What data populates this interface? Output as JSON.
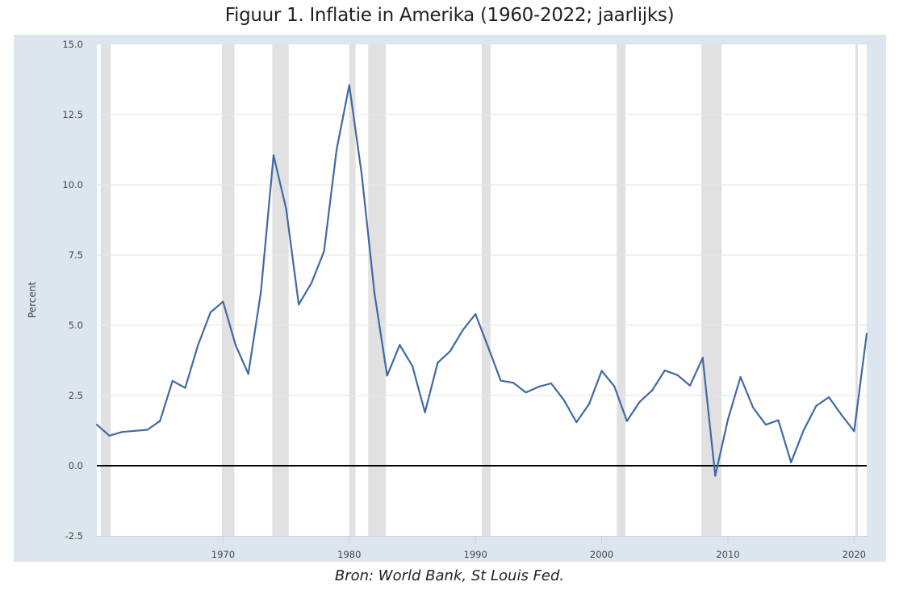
{
  "title": "Figuur 1. Inflatie in Amerika (1960-2022; jaarlijks)",
  "source": "Bron: World Bank, St Louis Fed.",
  "colors": {
    "frame": "#dde6ef",
    "plot": "#ffffff",
    "line": "#4169a4",
    "recession": "#e1e1e1",
    "grid": "#e6e6e6",
    "zero_line": "#000000"
  },
  "chart_data": {
    "type": "line",
    "title": "Figuur 1. Inflatie in Amerika (1960-2022; jaarlijks)",
    "xlabel": "",
    "ylabel": "Percent",
    "xlim": [
      1960,
      2021
    ],
    "ylim": [
      -2.5,
      15.0
    ],
    "grid": true,
    "x_ticks": [
      1970,
      1980,
      1990,
      2000,
      2010,
      2020
    ],
    "x_tick_labels": [
      "1970",
      "1980",
      "1990",
      "2000",
      "2010",
      "2020"
    ],
    "y_ticks": [
      -2.5,
      0.0,
      2.5,
      5.0,
      7.5,
      10.0,
      12.5,
      15.0
    ],
    "y_tick_labels": [
      "-2.5",
      "0.0",
      "2.5",
      "5.0",
      "7.5",
      "10.0",
      "12.5",
      "15.0"
    ],
    "reference_line": 0,
    "recessions": [
      [
        1960.3,
        1961.1
      ],
      [
        1969.9,
        1970.9
      ],
      [
        1973.9,
        1975.2
      ],
      [
        1980.0,
        1980.5
      ],
      [
        1981.5,
        1982.9
      ],
      [
        1990.5,
        1991.2
      ],
      [
        2001.2,
        2001.9
      ],
      [
        2007.9,
        2009.5
      ],
      [
        2020.1,
        2020.3
      ]
    ],
    "series": [
      {
        "name": "Inflatie",
        "x": [
          1960,
          1961,
          1962,
          1963,
          1964,
          1965,
          1966,
          1967,
          1968,
          1969,
          1970,
          1971,
          1972,
          1973,
          1974,
          1975,
          1976,
          1977,
          1978,
          1979,
          1980,
          1981,
          1982,
          1983,
          1984,
          1985,
          1986,
          1987,
          1988,
          1989,
          1990,
          1991,
          1992,
          1993,
          1994,
          1995,
          1996,
          1997,
          1998,
          1999,
          2000,
          2001,
          2002,
          2003,
          2004,
          2005,
          2006,
          2007,
          2008,
          2009,
          2010,
          2011,
          2012,
          2013,
          2014,
          2015,
          2016,
          2017,
          2018,
          2019,
          2020,
          2021
        ],
        "values": [
          1.46,
          1.07,
          1.2,
          1.24,
          1.28,
          1.59,
          3.02,
          2.77,
          4.27,
          5.46,
          5.84,
          4.29,
          3.27,
          6.18,
          11.05,
          9.14,
          5.74,
          6.5,
          7.63,
          11.25,
          13.55,
          10.33,
          6.13,
          3.21,
          4.3,
          3.55,
          1.9,
          3.66,
          4.08,
          4.83,
          5.4,
          4.23,
          3.03,
          2.95,
          2.61,
          2.81,
          2.93,
          2.34,
          1.55,
          2.19,
          3.38,
          2.83,
          1.59,
          2.27,
          2.68,
          3.39,
          3.23,
          2.85,
          3.84,
          -0.36,
          1.64,
          3.16,
          2.07,
          1.46,
          1.62,
          0.12,
          1.26,
          2.13,
          2.44,
          1.81,
          1.23,
          4.7
        ]
      }
    ]
  }
}
